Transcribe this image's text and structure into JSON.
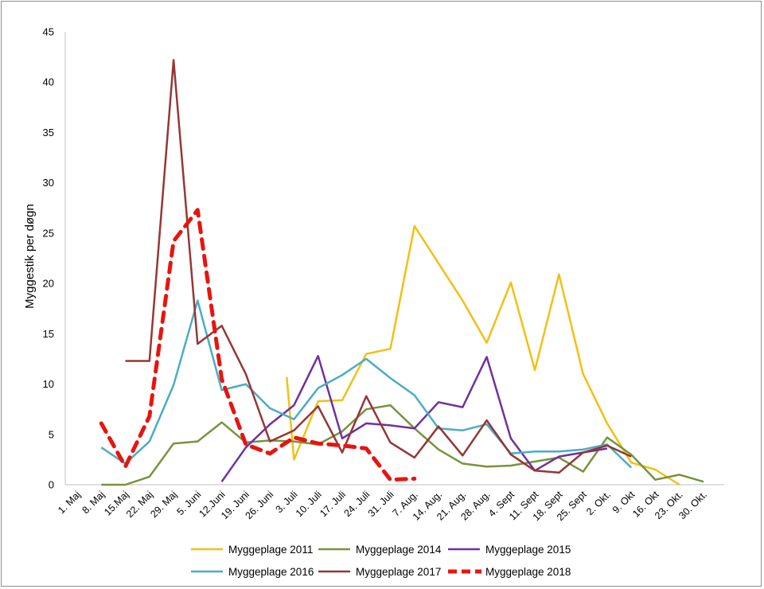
{
  "chart_data": {
    "type": "line",
    "title": "",
    "xlabel": "",
    "ylabel": "Myggestik per døgn",
    "ylim": [
      0,
      45
    ],
    "yticks": [
      0,
      5,
      10,
      15,
      20,
      25,
      30,
      35,
      40,
      45
    ],
    "grid": false,
    "legend_position": "bottom",
    "categories": [
      "1. Maj",
      "8. Maj",
      "15.Maj",
      "22. Maj",
      "29. Maj",
      "5. Juni",
      "12.Juni",
      "19. Juni",
      "26. Juni",
      "3. Juli",
      "10. Juli",
      "17. Juli",
      "24. Juli",
      "31. Juli",
      "7. Aug.",
      "14. Aug.",
      "21. Aug.",
      "28. Aug.",
      "4. Sept",
      "11. Sept",
      "18. Sept",
      "25. Sept",
      "2. Okt.",
      "9. Okt",
      "16. Okt",
      "23. Okt.",
      "30. Okt."
    ],
    "series": [
      {
        "name": "Myggeplage 2011",
        "color": "#f2c014",
        "dash": false,
        "points": [
          [
            8.7,
            10.7
          ],
          [
            9.0,
            2.5
          ],
          [
            10.0,
            8.3
          ],
          [
            11.0,
            8.4
          ],
          [
            12.0,
            13.0
          ],
          [
            13.0,
            13.5
          ],
          [
            14.0,
            25.7
          ],
          [
            15.0,
            22.0
          ],
          [
            16.0,
            18.3
          ],
          [
            17.0,
            14.1
          ],
          [
            18.0,
            20.1
          ],
          [
            19.0,
            11.4
          ],
          [
            20.0,
            20.9
          ],
          [
            21.0,
            11.0
          ],
          [
            22.0,
            6.1
          ],
          [
            23.0,
            2.2
          ],
          [
            24.0,
            1.5
          ],
          [
            25.0,
            0.0
          ]
        ]
      },
      {
        "name": "Myggeplage 2014",
        "color": "#77933c",
        "dash": false,
        "points": [
          [
            1.0,
            0.0
          ],
          [
            2.0,
            0.0
          ],
          [
            3.0,
            0.8
          ],
          [
            4.0,
            4.1
          ],
          [
            5.0,
            4.3
          ],
          [
            6.0,
            6.2
          ],
          [
            7.0,
            4.2
          ],
          [
            8.0,
            4.4
          ],
          [
            9.0,
            4.3
          ],
          [
            10.0,
            4.0
          ],
          [
            11.0,
            5.3
          ],
          [
            12.0,
            7.5
          ],
          [
            13.0,
            7.9
          ],
          [
            14.0,
            5.6
          ],
          [
            15.0,
            3.5
          ],
          [
            16.0,
            2.1
          ],
          [
            17.0,
            1.8
          ],
          [
            18.0,
            1.9
          ],
          [
            19.0,
            2.3
          ],
          [
            20.0,
            2.7
          ],
          [
            21.0,
            1.3
          ],
          [
            22.0,
            4.7
          ],
          [
            23.0,
            3.0
          ],
          [
            24.0,
            0.5
          ],
          [
            25.0,
            1.0
          ],
          [
            26.0,
            0.3
          ]
        ]
      },
      {
        "name": "Myggeplage 2015",
        "color": "#7030a0",
        "dash": false,
        "points": [
          [
            6.0,
            0.3
          ],
          [
            7.0,
            3.7
          ],
          [
            8.0,
            6.0
          ],
          [
            9.0,
            7.9
          ],
          [
            10.0,
            12.8
          ],
          [
            11.0,
            4.6
          ],
          [
            12.0,
            6.1
          ],
          [
            13.0,
            5.9
          ],
          [
            14.0,
            5.6
          ],
          [
            15.0,
            8.2
          ],
          [
            16.0,
            7.7
          ],
          [
            17.0,
            12.7
          ],
          [
            18.0,
            4.6
          ],
          [
            19.0,
            1.4
          ],
          [
            20.0,
            2.8
          ],
          [
            21.0,
            3.2
          ],
          [
            22.0,
            3.6
          ]
        ]
      },
      {
        "name": "Myggeplage 2016",
        "color": "#4bacc6",
        "dash": false,
        "points": [
          [
            1.0,
            3.7
          ],
          [
            2.0,
            2.1
          ],
          [
            3.0,
            4.3
          ],
          [
            4.0,
            9.9
          ],
          [
            5.0,
            18.3
          ],
          [
            6.0,
            9.4
          ],
          [
            7.0,
            10.0
          ],
          [
            8.0,
            7.6
          ],
          [
            9.0,
            6.5
          ],
          [
            10.0,
            9.6
          ],
          [
            11.0,
            10.9
          ],
          [
            12.0,
            12.5
          ],
          [
            13.0,
            10.6
          ],
          [
            14.0,
            8.9
          ],
          [
            15.0,
            5.6
          ],
          [
            16.0,
            5.4
          ],
          [
            17.0,
            6.0
          ],
          [
            18.0,
            3.1
          ],
          [
            19.0,
            3.3
          ],
          [
            20.0,
            3.3
          ],
          [
            21.0,
            3.5
          ],
          [
            22.0,
            4.0
          ],
          [
            23.0,
            1.7
          ]
        ]
      },
      {
        "name": "Myggeplage 2017",
        "color": "#953735",
        "dash": false,
        "points": [
          [
            2.0,
            12.3
          ],
          [
            3.0,
            12.3
          ],
          [
            4.0,
            42.2
          ],
          [
            5.0,
            14.0
          ],
          [
            6.0,
            15.8
          ],
          [
            7.0,
            11.0
          ],
          [
            8.0,
            4.3
          ],
          [
            9.0,
            5.4
          ],
          [
            10.0,
            7.8
          ],
          [
            11.0,
            3.2
          ],
          [
            12.0,
            8.8
          ],
          [
            13.0,
            4.2
          ],
          [
            14.0,
            2.7
          ],
          [
            15.0,
            5.8
          ],
          [
            16.0,
            2.9
          ],
          [
            17.0,
            6.4
          ],
          [
            18.0,
            3.0
          ],
          [
            19.0,
            1.4
          ],
          [
            20.0,
            1.2
          ],
          [
            21.0,
            3.2
          ],
          [
            22.0,
            3.9
          ],
          [
            23.0,
            2.8
          ]
        ]
      },
      {
        "name": "Myggeplage 2018",
        "color": "#e8140f",
        "dash": true,
        "points": [
          [
            1.0,
            6.1
          ],
          [
            2.0,
            1.8
          ],
          [
            3.0,
            6.8
          ],
          [
            4.0,
            24.2
          ],
          [
            5.0,
            27.3
          ],
          [
            6.0,
            10.5
          ],
          [
            7.0,
            4.0
          ],
          [
            8.0,
            3.1
          ],
          [
            9.0,
            4.7
          ],
          [
            10.0,
            4.1
          ],
          [
            11.0,
            3.9
          ],
          [
            12.0,
            3.6
          ],
          [
            13.0,
            0.5
          ],
          [
            14.0,
            0.6
          ]
        ]
      }
    ]
  }
}
